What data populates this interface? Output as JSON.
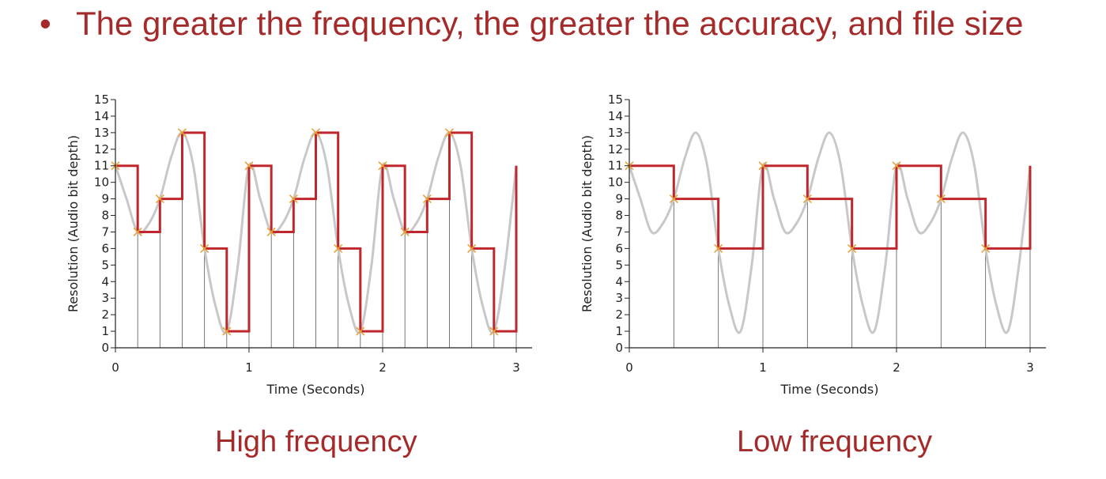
{
  "slide": {
    "bullet_symbol": "•",
    "bullet_text": "The greater the frequency, the greater the accuracy, and file size",
    "caption_left": "High frequency",
    "caption_right": "Low frequency",
    "text_color": "#a52a2a"
  },
  "chart_data": [
    {
      "type": "line",
      "title": "",
      "xlabel": "Time (Seconds)",
      "ylabel": "Resolution (Audio bit depth)",
      "xlim": [
        0,
        3
      ],
      "ylim": [
        0,
        15
      ],
      "x_ticks": [
        0,
        1,
        2,
        3
      ],
      "y_ticks": [
        0,
        1,
        2,
        3,
        4,
        5,
        6,
        7,
        8,
        9,
        10,
        11,
        12,
        13,
        14,
        15
      ],
      "colors": {
        "wave": "#c8c8c8",
        "sampled": "#c0272d",
        "marker": "#e8a23a",
        "grid": "#555555"
      },
      "wave_x": [
        0.0,
        0.0833,
        0.1667,
        0.25,
        0.3333,
        0.4167,
        0.5,
        0.5833,
        0.6667,
        0.75,
        0.8333,
        0.9167,
        1.0,
        1.0833,
        1.1667,
        1.25,
        1.3333,
        1.4167,
        1.5,
        1.5833,
        1.6667,
        1.75,
        1.8333,
        1.9167,
        2.0,
        2.0833,
        2.1667,
        2.25,
        2.3333,
        2.4167,
        2.5,
        2.5833,
        2.6667,
        2.75,
        2.8333,
        2.9167,
        3.0
      ],
      "wave_y": [
        11,
        9,
        7,
        7.5,
        9,
        11.5,
        13,
        11,
        6,
        2.5,
        1,
        5,
        11,
        9,
        7,
        7.5,
        9,
        11.5,
        13,
        11,
        6,
        2.5,
        1,
        5,
        11,
        9,
        7,
        7.5,
        9,
        11.5,
        13,
        11,
        6,
        2.5,
        1,
        5,
        11
      ],
      "samples_x": [
        0.0,
        0.1667,
        0.3333,
        0.5,
        0.6667,
        0.8333,
        1.0,
        1.1667,
        1.3333,
        1.5,
        1.6667,
        1.8333,
        2.0,
        2.1667,
        2.3333,
        2.5,
        2.6667,
        2.8333
      ],
      "samples_y": [
        11,
        7,
        9,
        13,
        6,
        1,
        11,
        7,
        9,
        13,
        6,
        1,
        11,
        7,
        9,
        13,
        6,
        1
      ],
      "end_x": 3.0,
      "end_y": 11
    },
    {
      "type": "line",
      "title": "",
      "xlabel": "Time (Seconds)",
      "ylabel": "Resolution (Audio bit depth)",
      "xlim": [
        0,
        3
      ],
      "ylim": [
        0,
        15
      ],
      "x_ticks": [
        0,
        1,
        2,
        3
      ],
      "y_ticks": [
        0,
        1,
        2,
        3,
        4,
        5,
        6,
        7,
        8,
        9,
        10,
        11,
        12,
        13,
        14,
        15
      ],
      "colors": {
        "wave": "#c8c8c8",
        "sampled": "#c0272d",
        "marker": "#e8a23a",
        "grid": "#555555"
      },
      "wave_x": [
        0.0,
        0.0833,
        0.1667,
        0.25,
        0.3333,
        0.4167,
        0.5,
        0.5833,
        0.6667,
        0.75,
        0.8333,
        0.9167,
        1.0,
        1.0833,
        1.1667,
        1.25,
        1.3333,
        1.4167,
        1.5,
        1.5833,
        1.6667,
        1.75,
        1.8333,
        1.9167,
        2.0,
        2.0833,
        2.1667,
        2.25,
        2.3333,
        2.4167,
        2.5,
        2.5833,
        2.6667,
        2.75,
        2.8333,
        2.9167,
        3.0
      ],
      "wave_y": [
        11,
        9,
        7,
        7.5,
        9,
        11.5,
        13,
        11,
        6,
        2.5,
        1,
        5,
        11,
        9,
        7,
        7.5,
        9,
        11.5,
        13,
        11,
        6,
        2.5,
        1,
        5,
        11,
        9,
        7,
        7.5,
        9,
        11.5,
        13,
        11,
        6,
        2.5,
        1,
        5,
        11
      ],
      "samples_x": [
        0.0,
        0.3333,
        0.6667,
        1.0,
        1.3333,
        1.6667,
        2.0,
        2.3333,
        2.6667
      ],
      "samples_y": [
        11,
        9,
        6,
        11,
        9,
        6,
        11,
        9,
        6
      ],
      "end_x": 3.0,
      "end_y": 11
    }
  ]
}
